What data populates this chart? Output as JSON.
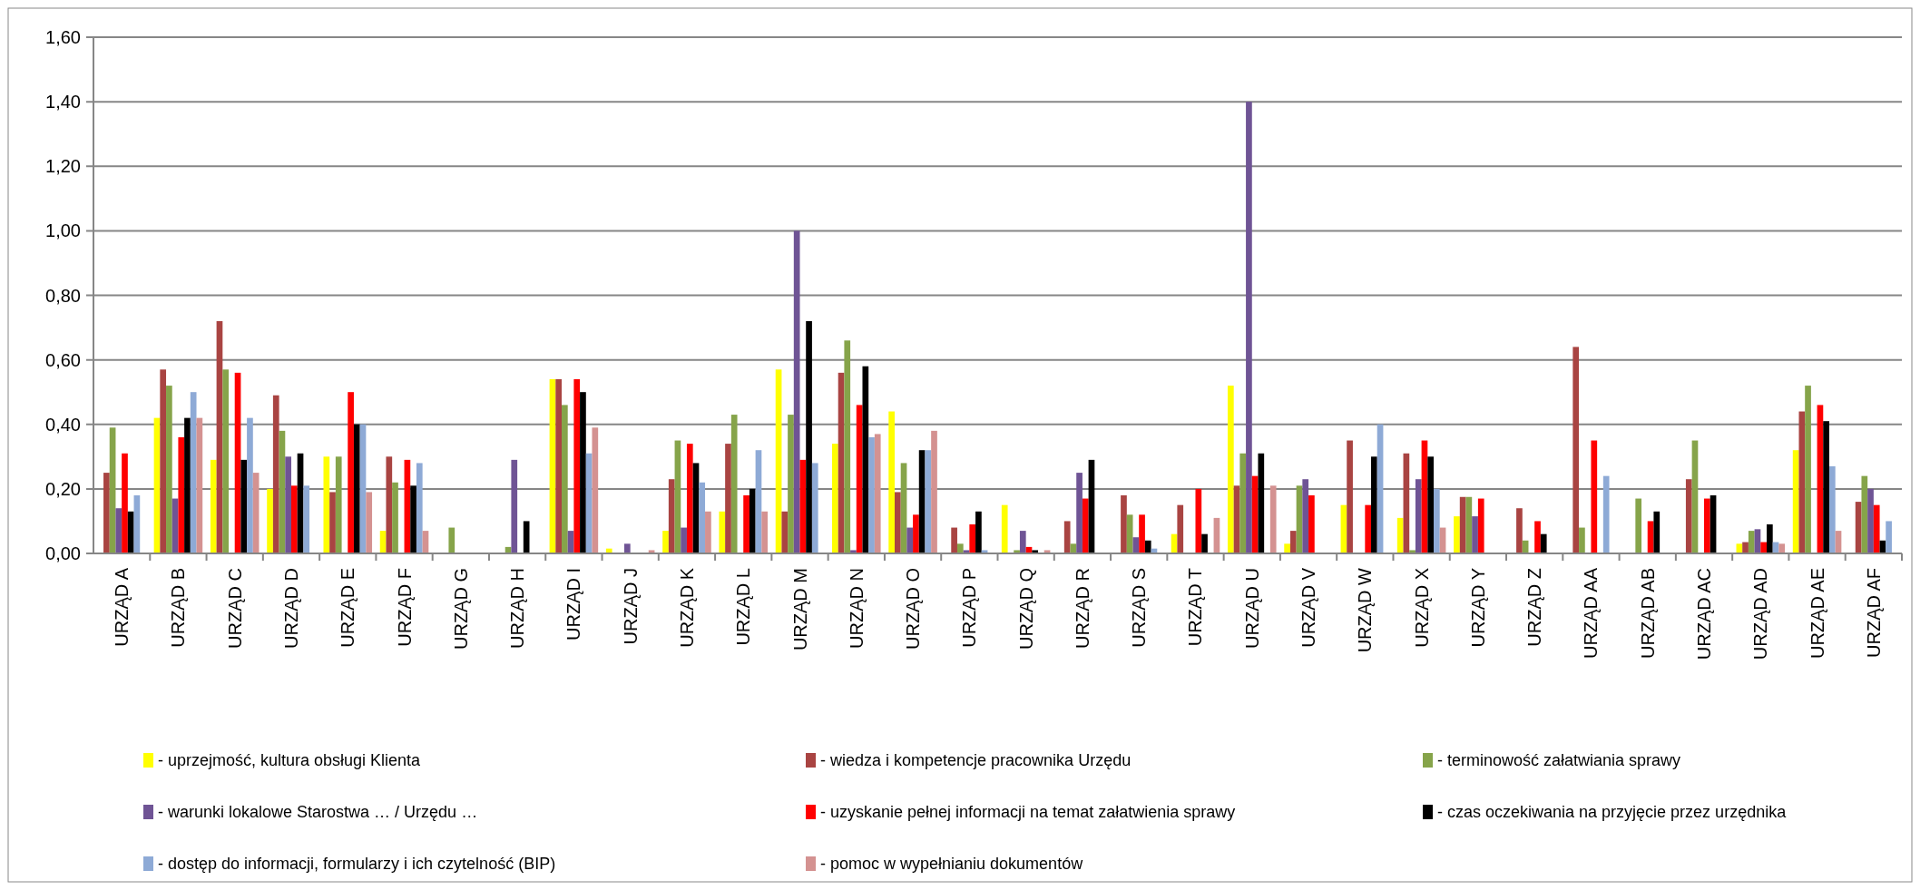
{
  "chart_data": {
    "type": "bar",
    "categories": [
      "URZĄD A",
      "URZĄD B",
      "URZĄD C",
      "URZĄD D",
      "URZĄD E",
      "URZĄD F",
      "URZĄD G",
      "URZĄD H",
      "URZĄD I",
      "URZĄD J",
      "URZĄD K",
      "URZĄD L",
      "URZĄD M",
      "URZĄD N",
      "URZĄD O",
      "URZĄD P",
      "URZĄD Q",
      "URZĄD R",
      "URZĄD S",
      "URZĄD T",
      "URZĄD U",
      "URZĄD V",
      "URZĄD W",
      "URZĄD X",
      "URZĄD Y",
      "URZĄD Z",
      "URZĄD AA",
      "URZĄD AB",
      "URZĄD AC",
      "URZĄD AD",
      "URZĄD AE",
      "URZĄD AF"
    ],
    "series": [
      {
        "name": "- uprzejmość, kultura obsługi Klienta",
        "color": "#ffff00",
        "values": [
          0,
          0.42,
          0.29,
          0.2,
          0.3,
          0.07,
          0,
          0,
          0.54,
          0.015,
          0.07,
          0.13,
          0.57,
          0.34,
          0.44,
          0,
          0.15,
          0,
          0,
          0.06,
          0.52,
          0.03,
          0.15,
          0.11,
          0.115,
          0,
          0,
          0,
          0,
          0.03,
          0.32,
          0
        ]
      },
      {
        "name": "- wiedza i kompetencje pracownika Urzędu",
        "color": "#a94442",
        "values": [
          0.25,
          0.57,
          0.72,
          0.49,
          0.19,
          0.3,
          0,
          0,
          0.54,
          0,
          0.23,
          0.34,
          0.13,
          0.56,
          0.19,
          0.08,
          0,
          0.1,
          0.18,
          0.15,
          0.21,
          0.07,
          0.35,
          0.31,
          0.175,
          0.14,
          0.64,
          0,
          0.23,
          0.035,
          0.44,
          0.16
        ]
      },
      {
        "name": "- terminowość załatwiania  sprawy",
        "color": "#86a44a",
        "values": [
          0.39,
          0.52,
          0.57,
          0.38,
          0.3,
          0.22,
          0.08,
          0.02,
          0.46,
          0,
          0.35,
          0.43,
          0.43,
          0.66,
          0.28,
          0.03,
          0.01,
          0.03,
          0.12,
          0,
          0.31,
          0.21,
          0,
          0.01,
          0.175,
          0.04,
          0.08,
          0.17,
          0.35,
          0.07,
          0.52,
          0.24
        ]
      },
      {
        "name": "- warunki lokalowe Starostwa … / Urzędu …",
        "color": "#6f5495",
        "values": [
          0.14,
          0.17,
          0,
          0.3,
          0,
          0,
          0,
          0.29,
          0.07,
          0.03,
          0.08,
          0,
          1.0,
          0.01,
          0.08,
          0.01,
          0.07,
          0.25,
          0.05,
          0,
          1.4,
          0.23,
          0,
          0.23,
          0.115,
          0,
          0,
          0,
          0,
          0.075,
          0,
          0.2
        ]
      },
      {
        "name": "- uzyskanie pełnej informacji na temat załatwienia  sprawy",
        "color": "#ff0000",
        "values": [
          0.31,
          0.36,
          0.56,
          0.21,
          0.5,
          0.29,
          0,
          0,
          0.54,
          0,
          0.34,
          0.18,
          0.29,
          0.46,
          0.12,
          0.09,
          0.02,
          0.17,
          0.12,
          0.2,
          0.24,
          0.18,
          0.15,
          0.35,
          0.17,
          0.1,
          0.35,
          0.1,
          0.17,
          0.035,
          0.46,
          0.15
        ]
      },
      {
        "name": "- czas oczekiwania na przyjęcie przez urzędnika",
        "color": "#000000",
        "values": [
          0.13,
          0.42,
          0.29,
          0.31,
          0.4,
          0.21,
          0,
          0.1,
          0.5,
          0,
          0.28,
          0.2,
          0.72,
          0.58,
          0.32,
          0.13,
          0.01,
          0.29,
          0.04,
          0.06,
          0.31,
          0,
          0.3,
          0.3,
          0,
          0.06,
          0,
          0.13,
          0.18,
          0.09,
          0.41,
          0.04
        ]
      },
      {
        "name": "- dostęp do informacji,  formularzy i ich czytelność (BIP)",
        "color": "#8eaad6",
        "values": [
          0.18,
          0.5,
          0.42,
          0.21,
          0.4,
          0.28,
          0,
          0,
          0.31,
          0,
          0.22,
          0.32,
          0.28,
          0.36,
          0.32,
          0.01,
          0,
          0,
          0.015,
          0,
          0,
          0,
          0.4,
          0.2,
          0,
          0,
          0.24,
          0,
          0,
          0.035,
          0.27,
          0.1
        ]
      },
      {
        "name": "- pomoc w wypełnianiu dokumentów",
        "color": "#d49291",
        "values": [
          0,
          0.42,
          0.25,
          0,
          0.19,
          0.07,
          0,
          0,
          0.39,
          0.01,
          0.13,
          0.13,
          0,
          0.37,
          0.38,
          0,
          0.01,
          0,
          0,
          0.11,
          0.21,
          0,
          0,
          0.08,
          0,
          0,
          0,
          0,
          0,
          0.03,
          0.07,
          0
        ]
      }
    ],
    "ylim": [
      0,
      1.6
    ],
    "yticks": [
      {
        "value": 0,
        "label": "0,00"
      },
      {
        "value": 0.2,
        "label": "0,20"
      },
      {
        "value": 0.4,
        "label": "0,40"
      },
      {
        "value": 0.6,
        "label": "0,60"
      },
      {
        "value": 0.8,
        "label": "0,80"
      },
      {
        "value": 1,
        "label": "1,00"
      },
      {
        "value": 1.2,
        "label": "1,20"
      },
      {
        "value": 1.4,
        "label": "1,40"
      },
      {
        "value": 1.6,
        "label": "1,60"
      }
    ],
    "grid": "y",
    "legend": "bottom"
  }
}
